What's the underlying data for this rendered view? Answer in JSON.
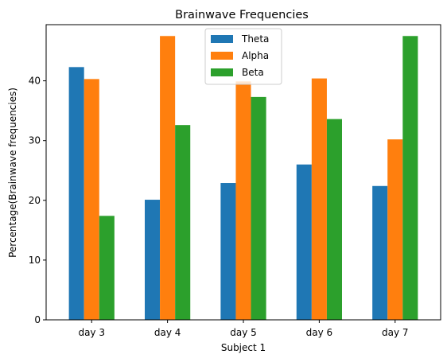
{
  "chart_data": {
    "type": "bar",
    "title": "Brainwave Frequencies",
    "xlabel": "Subject 1",
    "ylabel": "Percentage(Brainwave frequencies)",
    "categories": [
      "day 3",
      "day 4",
      "day 5",
      "day 6",
      "day 7"
    ],
    "series": [
      {
        "name": "Theta",
        "color": "#1f77b4",
        "values": [
          42.3,
          20.1,
          22.9,
          26.0,
          22.4
        ]
      },
      {
        "name": "Alpha",
        "color": "#ff7f0e",
        "values": [
          40.3,
          47.5,
          39.9,
          40.4,
          30.2
        ]
      },
      {
        "name": "Beta",
        "color": "#2ca02c",
        "values": [
          17.4,
          32.6,
          37.3,
          33.6,
          47.5
        ]
      }
    ],
    "ylim": [
      0,
      49.4
    ],
    "yticks": [
      0,
      10,
      20,
      30,
      40
    ],
    "grid": false,
    "legend_position": "top-center"
  }
}
